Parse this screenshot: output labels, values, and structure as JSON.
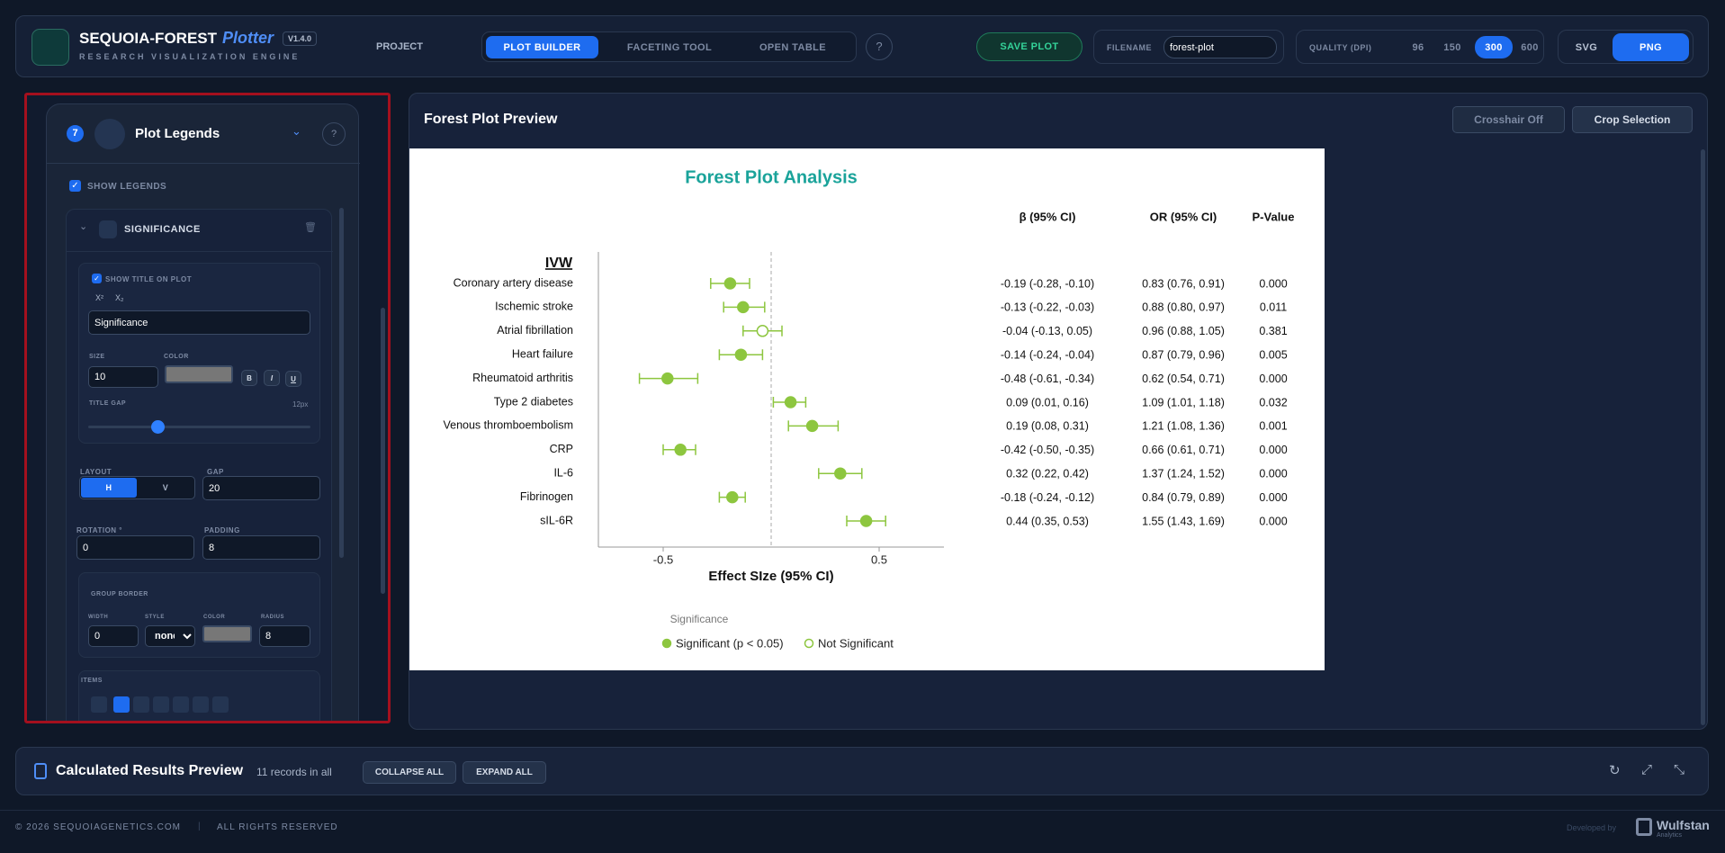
{
  "header": {
    "brand": "SEQUOIA-FOREST",
    "product": "Plotter",
    "version": "V1.4.0",
    "subtitle": "RESEARCH VISUALIZATION ENGINE",
    "project": "PROJECT",
    "tabs": [
      "PLOT BUILDER",
      "FACETING TOOL",
      "OPEN TABLE"
    ],
    "save": "SAVE PLOT",
    "filename_label": "FILENAME",
    "filename": "forest-plot",
    "quality_label": "QUALITY (DPI)",
    "dpi": [
      "96",
      "150",
      "300",
      "600"
    ],
    "formats": [
      "SVG",
      "PNG"
    ]
  },
  "sidebar": {
    "step": "7",
    "title": "Plot Legends",
    "show_legends": "SHOW LEGENDS",
    "section": "SIGNIFICANCE",
    "show_title": "SHOW TITLE ON PLOT",
    "sup": "X²",
    "sub": "X₂",
    "title_input": "Significance",
    "size_label": "SIZE",
    "size": "10",
    "color_label": "COLOR",
    "bold": "B",
    "italic": "I",
    "underline": "U",
    "title_gap_label": "TITLE GAP",
    "title_gap": "12px",
    "layout_label": "LAYOUT",
    "layout_h": "H",
    "layout_v": "V",
    "gap_label": "GAP",
    "gap": "20",
    "rotation_label": "ROTATION °",
    "rotation": "0",
    "padding_label": "PADDING",
    "padding": "8",
    "group_border": "GROUP BORDER",
    "width_label": "WIDTH",
    "width": "0",
    "style_label": "STYLE",
    "style": "none",
    "border_color_label": "COLOR",
    "radius_label": "RADIUS",
    "radius": "8",
    "items_label": "ITEMS"
  },
  "preview": {
    "title": "Forest Plot Preview",
    "crosshair": "Crosshair Off",
    "crop": "Crop Selection"
  },
  "results": {
    "title": "Calculated Results Preview",
    "count": "11 records in all",
    "collapse": "COLLAPSE ALL",
    "expand": "EXPAND ALL"
  },
  "footer": {
    "copyright": "© 2026 SEQUOIAGENETICS.COM",
    "rights": "ALL RIGHTS RESERVED",
    "developed": "Developed by",
    "company": "Wulfstan",
    "company_sub": "Analytics"
  },
  "chart_data": {
    "type": "forest",
    "title": "Forest Plot Analysis",
    "group": "IVW",
    "categories": [
      "Coronary artery disease",
      "Ischemic stroke",
      "Atrial fibrillation",
      "Heart failure",
      "Rheumatoid arthritis",
      "Type 2 diabetes",
      "Venous thromboembolism",
      "CRP",
      "IL-6",
      "Fibrinogen",
      "sIL-6R"
    ],
    "values": [
      -0.19,
      -0.13,
      -0.04,
      -0.14,
      -0.48,
      0.09,
      0.19,
      -0.42,
      0.32,
      -0.18,
      0.44
    ],
    "ci_low": [
      -0.28,
      -0.22,
      -0.13,
      -0.24,
      -0.61,
      0.01,
      0.08,
      -0.5,
      0.22,
      -0.24,
      0.35
    ],
    "ci_high": [
      -0.1,
      -0.03,
      0.05,
      -0.04,
      -0.34,
      0.16,
      0.31,
      -0.35,
      0.42,
      -0.12,
      0.53
    ],
    "significant": [
      true,
      true,
      false,
      true,
      true,
      true,
      true,
      true,
      true,
      true,
      true
    ],
    "columns": [
      {
        "header": "β (95% CI)",
        "cells": [
          "-0.19 (-0.28, -0.10)",
          "-0.13 (-0.22, -0.03)",
          "-0.04 (-0.13, 0.05)",
          "-0.14 (-0.24, -0.04)",
          "-0.48 (-0.61, -0.34)",
          "0.09 (0.01, 0.16)",
          "0.19 (0.08, 0.31)",
          "-0.42 (-0.50, -0.35)",
          "0.32 (0.22, 0.42)",
          "-0.18 (-0.24, -0.12)",
          "0.44 (0.35, 0.53)"
        ]
      },
      {
        "header": "OR (95% CI)",
        "cells": [
          "0.83 (0.76, 0.91)",
          "0.88 (0.80, 0.97)",
          "0.96 (0.88, 1.05)",
          "0.87 (0.79, 0.96)",
          "0.62 (0.54, 0.71)",
          "1.09 (1.01, 1.18)",
          "1.21 (1.08, 1.36)",
          "0.66 (0.61, 0.71)",
          "1.37 (1.24, 1.52)",
          "0.84 (0.79, 0.89)",
          "1.55 (1.43, 1.69)"
        ]
      },
      {
        "header": "P-Value",
        "cells": [
          "0.000",
          "0.011",
          "0.381",
          "0.005",
          "0.000",
          "0.032",
          "0.001",
          "0.000",
          "0.000",
          "0.000",
          "0.000"
        ]
      }
    ],
    "xlabel": "Effect SIze (95% CI)",
    "xlim": [
      -0.8,
      0.8
    ],
    "xticks": [
      -0.5,
      0.5
    ],
    "ref_line": 0,
    "color": "#8dc63f",
    "title_color": "#1aa39a",
    "legend": {
      "title": "Significance",
      "entries": [
        "Significant (p < 0.05)",
        "Not Significant"
      ]
    }
  }
}
